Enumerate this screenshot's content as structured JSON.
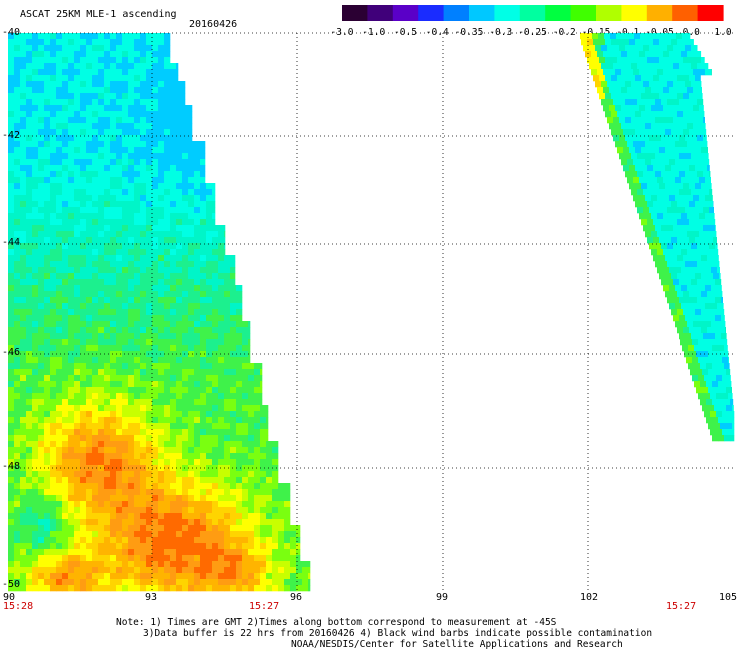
{
  "header": {
    "title": "ASCAT 25KM MLE-1 ascending",
    "date": "20160426"
  },
  "colorbar": {
    "colors": [
      "#2b0033",
      "#40007a",
      "#5a00c8",
      "#1a2cff",
      "#0080ff",
      "#00c8ff",
      "#00ffe6",
      "#00ffa0",
      "#00ff40",
      "#40ff00",
      "#b0ff00",
      "#ffff00",
      "#ffb000",
      "#ff6000",
      "#ff0000"
    ],
    "labels": [
      "-3.0",
      "-1.0",
      "-0.5",
      "-0.4",
      "-0.35",
      "-0.3",
      "-0.25",
      "-0.2",
      "-0.15",
      "-0.1",
      "-0.05",
      "0.0",
      "1.0"
    ]
  },
  "axes": {
    "y_ticks": [
      "-40",
      "-42",
      "-44",
      "-46",
      "-48",
      "-50"
    ],
    "x_ticks": [
      "90",
      "93",
      "96",
      "99",
      "102",
      "105"
    ]
  },
  "times": {
    "left": "15:28",
    "middle": "15:27",
    "right": "15:27"
  },
  "notes": {
    "line1": "Note: 1) Times are GMT 2)Times along bottom correspond to measurement at -45S",
    "line2": "3)Data buffer is 22 hrs from 20160426 4) Black wind barbs indicate possible contamination",
    "line3": "NOAA/NESDIS/Center for Satellite Applications and Research"
  }
}
